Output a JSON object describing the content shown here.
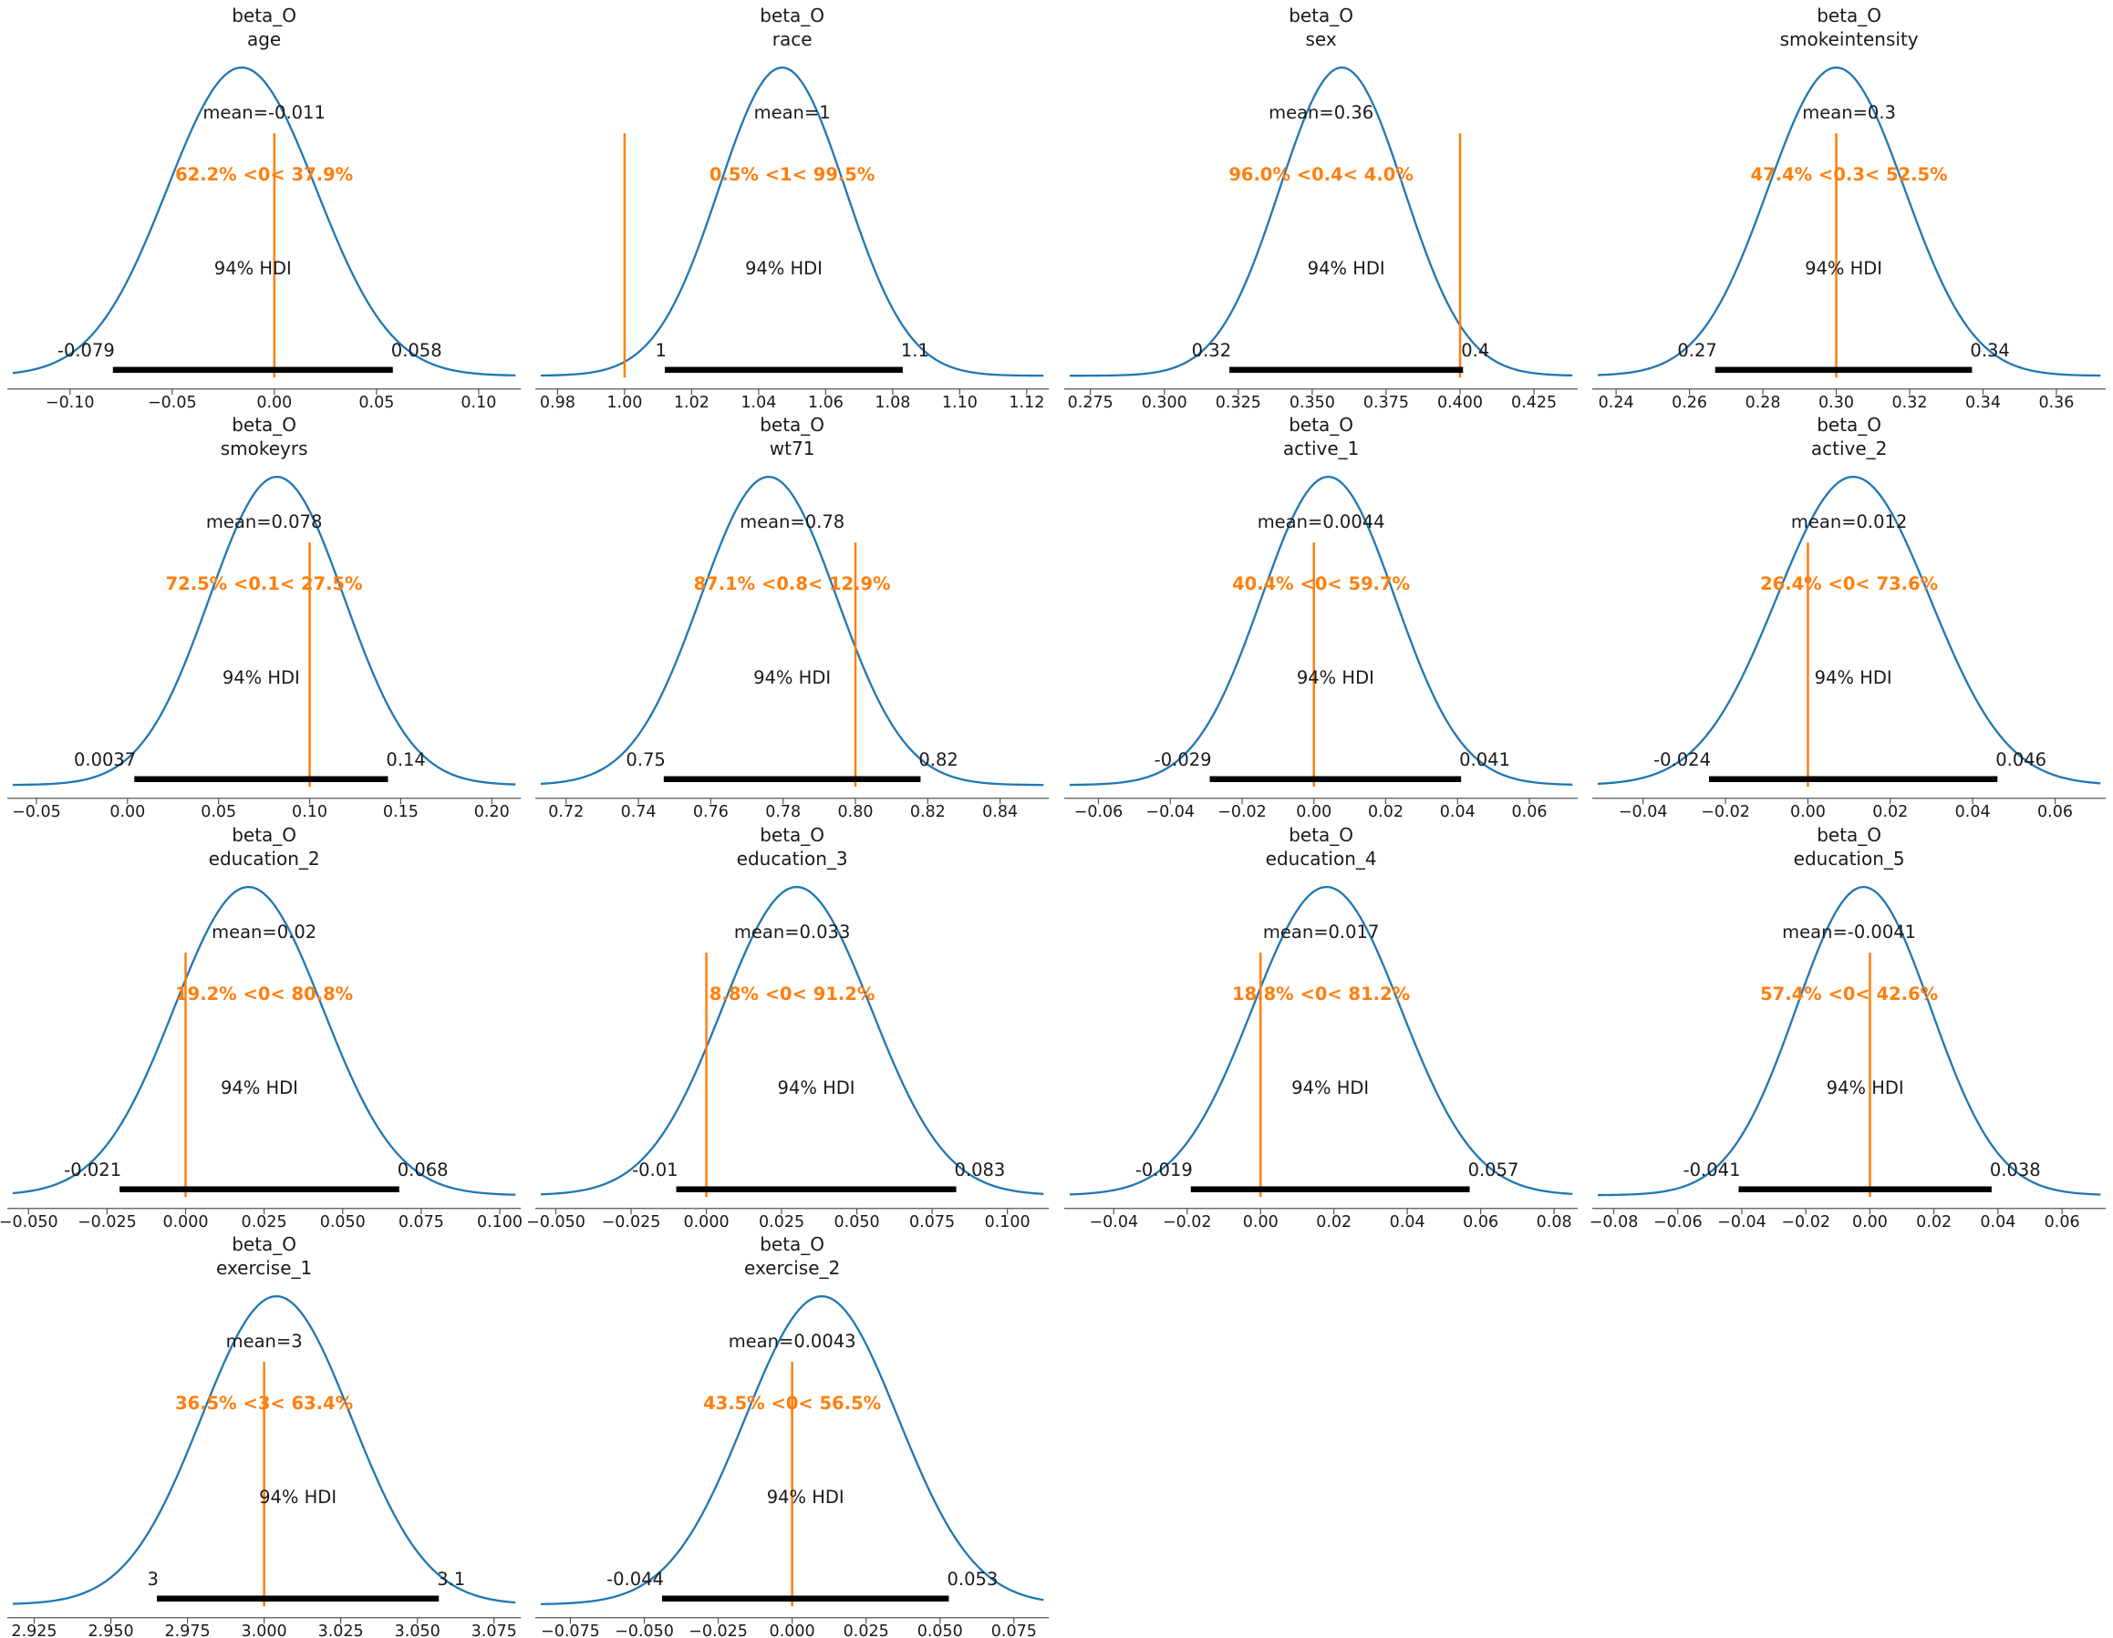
{
  "chart_data": {
    "type": "line",
    "description": "Grid of 14 posterior density (KDE) plots with 94% HDI intervals and reference values",
    "layout": {
      "columns": 4,
      "rows": 4,
      "legend": "none",
      "grid": "off"
    },
    "colors": {
      "kde_line": "#1f77b4",
      "ref_line": "#ff7f0e",
      "prob_text": "#ff7f0e",
      "hdi_bar": "#000000",
      "text": "#1a1a1a",
      "axis": "#555555",
      "background": "#ffffff"
    },
    "panels": [
      {
        "title_line1": "beta_O",
        "title_line2": "age",
        "mean_label": "mean=-0.011",
        "mean": -0.011,
        "mode": -0.016,
        "prob_label": "62.2% <0< 37.9%",
        "ref_val": 0,
        "hdi_label": "94% HDI",
        "hdi_low_label": "-0.079",
        "hdi_high_label": "0.058",
        "hdi_low": -0.079,
        "hdi_high": 0.058,
        "hdi_low_draw": -0.079,
        "hdi_high_draw": 0.058,
        "axis_min": -0.128,
        "axis_max": 0.118,
        "tick_values": [
          -0.1,
          -0.05,
          0.0,
          0.05,
          0.1
        ],
        "tick_labels": [
          "−0.10",
          "−0.05",
          "0.00",
          "0.05",
          "0.10"
        ]
      },
      {
        "title_line1": "beta_O",
        "title_line2": "race",
        "mean_label": "mean=1",
        "mean": 1,
        "mode": 1.047,
        "prob_label": "0.5% <1< 99.5%",
        "ref_val": 1,
        "hdi_label": "94% HDI",
        "hdi_low_label": "1",
        "hdi_high_label": "1.1",
        "hdi_low": 1,
        "hdi_high": 1.1,
        "hdi_low_draw": 1.012,
        "hdi_high_draw": 1.083,
        "axis_min": 0.975,
        "axis_max": 1.125,
        "tick_values": [
          0.98,
          1.0,
          1.02,
          1.04,
          1.06,
          1.08,
          1.1,
          1.12
        ],
        "tick_labels": [
          "0.98",
          "1.00",
          "1.02",
          "1.04",
          "1.06",
          "1.08",
          "1.10",
          "1.12"
        ]
      },
      {
        "title_line1": "beta_O",
        "title_line2": "sex",
        "mean_label": "mean=0.36",
        "mean": 0.36,
        "mode": 0.36,
        "prob_label": "96.0% <0.4< 4.0%",
        "ref_val": 0.4,
        "hdi_label": "94% HDI",
        "hdi_low_label": "0.32",
        "hdi_high_label": "0.4",
        "hdi_low": 0.32,
        "hdi_high": 0.4,
        "hdi_low_draw": 0.322,
        "hdi_high_draw": 0.401,
        "axis_min": 0.268,
        "axis_max": 0.438,
        "tick_values": [
          0.275,
          0.3,
          0.325,
          0.35,
          0.375,
          0.4,
          0.425
        ],
        "tick_labels": [
          "0.275",
          "0.300",
          "0.325",
          "0.350",
          "0.375",
          "0.400",
          "0.425"
        ]
      },
      {
        "title_line1": "beta_O",
        "title_line2": "smokeintensity",
        "mean_label": "mean=0.3",
        "mean": 0.3,
        "mode": 0.3,
        "prob_label": "47.4% <0.3< 52.5%",
        "ref_val": 0.3,
        "hdi_label": "94% HDI",
        "hdi_low_label": "0.27",
        "hdi_high_label": "0.34",
        "hdi_low": 0.27,
        "hdi_high": 0.34,
        "hdi_low_draw": 0.267,
        "hdi_high_draw": 0.337,
        "axis_min": 0.235,
        "axis_max": 0.372,
        "tick_values": [
          0.24,
          0.26,
          0.28,
          0.3,
          0.32,
          0.34,
          0.36
        ],
        "tick_labels": [
          "0.24",
          "0.26",
          "0.28",
          "0.30",
          "0.32",
          "0.34",
          "0.36"
        ]
      },
      {
        "title_line1": "beta_O",
        "title_line2": "smokeyrs",
        "mean_label": "mean=0.078",
        "mean": 0.078,
        "mode": 0.082,
        "prob_label": "72.5% <0.1< 27.5%",
        "ref_val": 0.1,
        "hdi_label": "94% HDI",
        "hdi_low_label": "0.0037",
        "hdi_high_label": "0.14",
        "hdi_low": 0.0037,
        "hdi_high": 0.14,
        "hdi_low_draw": 0.0037,
        "hdi_high_draw": 0.143,
        "axis_min": -0.063,
        "axis_max": 0.213,
        "tick_values": [
          -0.05,
          0.0,
          0.05,
          0.1,
          0.15,
          0.2
        ],
        "tick_labels": [
          "−0.05",
          "0.00",
          "0.05",
          "0.10",
          "0.15",
          "0.20"
        ]
      },
      {
        "title_line1": "beta_O",
        "title_line2": "wt71",
        "mean_label": "mean=0.78",
        "mean": 0.78,
        "mode": 0.776,
        "prob_label": "87.1% <0.8< 12.9%",
        "ref_val": 0.8,
        "hdi_label": "94% HDI",
        "hdi_low_label": "0.75",
        "hdi_high_label": "0.82",
        "hdi_low": 0.75,
        "hdi_high": 0.82,
        "hdi_low_draw": 0.747,
        "hdi_high_draw": 0.818,
        "axis_min": 0.713,
        "axis_max": 0.852,
        "tick_values": [
          0.72,
          0.74,
          0.76,
          0.78,
          0.8,
          0.82,
          0.84
        ],
        "tick_labels": [
          "0.72",
          "0.74",
          "0.76",
          "0.78",
          "0.80",
          "0.82",
          "0.84"
        ]
      },
      {
        "title_line1": "beta_O",
        "title_line2": "active_1",
        "mean_label": "mean=0.0044",
        "mean": 0.0044,
        "mode": 0.004,
        "prob_label": "40.4% <0< 59.7%",
        "ref_val": 0,
        "hdi_label": "94% HDI",
        "hdi_low_label": "-0.029",
        "hdi_high_label": "0.041",
        "hdi_low": -0.029,
        "hdi_high": 0.041,
        "hdi_low_draw": -0.029,
        "hdi_high_draw": 0.041,
        "axis_min": -0.068,
        "axis_max": 0.072,
        "tick_values": [
          -0.06,
          -0.04,
          -0.02,
          0.0,
          0.02,
          0.04,
          0.06
        ],
        "tick_labels": [
          "−0.06",
          "−0.04",
          "−0.02",
          "0.00",
          "0.02",
          "0.04",
          "0.06"
        ]
      },
      {
        "title_line1": "beta_O",
        "title_line2": "active_2",
        "mean_label": "mean=0.012",
        "mean": 0.012,
        "mode": 0.011,
        "prob_label": "26.4% <0< 73.6%",
        "ref_val": 0,
        "hdi_label": "94% HDI",
        "hdi_low_label": "-0.024",
        "hdi_high_label": "0.046",
        "hdi_low": -0.024,
        "hdi_high": 0.046,
        "hdi_low_draw": -0.024,
        "hdi_high_draw": 0.046,
        "axis_min": -0.051,
        "axis_max": 0.071,
        "tick_values": [
          -0.04,
          -0.02,
          0.0,
          0.02,
          0.04,
          0.06
        ],
        "tick_labels": [
          "−0.04",
          "−0.02",
          "0.00",
          "0.02",
          "0.04",
          "0.06"
        ]
      },
      {
        "title_line1": "beta_O",
        "title_line2": "education_2",
        "mean_label": "mean=0.02",
        "mean": 0.02,
        "mode": 0.02,
        "prob_label": "19.2% <0< 80.8%",
        "ref_val": 0,
        "hdi_label": "94% HDI",
        "hdi_low_label": "-0.021",
        "hdi_high_label": "0.068",
        "hdi_low": -0.021,
        "hdi_high": 0.068,
        "hdi_low_draw": -0.021,
        "hdi_high_draw": 0.068,
        "axis_min": -0.055,
        "axis_max": 0.105,
        "tick_values": [
          -0.05,
          -0.025,
          0.0,
          0.025,
          0.05,
          0.075,
          0.1
        ],
        "tick_labels": [
          "−0.050",
          "−0.025",
          "0.000",
          "0.025",
          "0.050",
          "0.075",
          "0.100"
        ]
      },
      {
        "title_line1": "beta_O",
        "title_line2": "education_3",
        "mean_label": "mean=0.033",
        "mean": 0.033,
        "mode": 0.03,
        "prob_label": "8.8% <0< 91.2%",
        "ref_val": 0,
        "hdi_label": "94% HDI",
        "hdi_low_label": "-0.01",
        "hdi_high_label": "0.083",
        "hdi_low": -0.01,
        "hdi_high": 0.083,
        "hdi_low_draw": -0.01,
        "hdi_high_draw": 0.083,
        "axis_min": -0.055,
        "axis_max": 0.112,
        "tick_values": [
          -0.05,
          -0.025,
          0.0,
          0.025,
          0.05,
          0.075,
          0.1
        ],
        "tick_labels": [
          "−0.050",
          "−0.025",
          "0.000",
          "0.025",
          "0.050",
          "0.075",
          "0.100"
        ]
      },
      {
        "title_line1": "beta_O",
        "title_line2": "education_4",
        "mean_label": "mean=0.017",
        "mean": 0.017,
        "mode": 0.018,
        "prob_label": "18.8% <0< 81.2%",
        "ref_val": 0,
        "hdi_label": "94% HDI",
        "hdi_low_label": "-0.019",
        "hdi_high_label": "0.057",
        "hdi_low": -0.019,
        "hdi_high": 0.057,
        "hdi_low_draw": -0.019,
        "hdi_high_draw": 0.057,
        "axis_min": -0.052,
        "axis_max": 0.085,
        "tick_values": [
          -0.04,
          -0.02,
          0.0,
          0.02,
          0.04,
          0.06,
          0.08
        ],
        "tick_labels": [
          "−0.04",
          "−0.02",
          "0.00",
          "0.02",
          "0.04",
          "0.06",
          "0.08"
        ]
      },
      {
        "title_line1": "beta_O",
        "title_line2": "education_5",
        "mean_label": "mean=-0.0041",
        "mean": -0.0041,
        "mode": -0.002,
        "prob_label": "57.4% <0< 42.6%",
        "ref_val": 0,
        "hdi_label": "94% HDI",
        "hdi_low_label": "-0.041",
        "hdi_high_label": "0.038",
        "hdi_low": -0.041,
        "hdi_high": 0.038,
        "hdi_low_draw": -0.041,
        "hdi_high_draw": 0.038,
        "axis_min": -0.085,
        "axis_max": 0.072,
        "tick_values": [
          -0.08,
          -0.06,
          -0.04,
          -0.02,
          0.0,
          0.02,
          0.04,
          0.06
        ],
        "tick_labels": [
          "−0.08",
          "−0.06",
          "−0.04",
          "−0.02",
          "0.00",
          "0.02",
          "0.04",
          "0.06"
        ]
      },
      {
        "title_line1": "beta_O",
        "title_line2": "exercise_1",
        "mean_label": "mean=3",
        "mean": 3,
        "mode": 3.004,
        "prob_label": "36.5% <3< 63.4%",
        "ref_val": 3,
        "hdi_label": "94% HDI",
        "hdi_low_label": "3",
        "hdi_high_label": "3.1",
        "hdi_low": 3,
        "hdi_high": 3.1,
        "hdi_low_draw": 2.965,
        "hdi_high_draw": 3.057,
        "axis_min": 2.918,
        "axis_max": 3.082,
        "tick_values": [
          2.925,
          2.95,
          2.975,
          3.0,
          3.025,
          3.05,
          3.075
        ],
        "tick_labels": [
          "2.925",
          "2.950",
          "2.975",
          "3.000",
          "3.025",
          "3.050",
          "3.075"
        ]
      },
      {
        "title_line1": "beta_O",
        "title_line2": "exercise_2",
        "mean_label": "mean=0.0043",
        "mean": 0.0043,
        "mode": 0.01,
        "prob_label": "43.5% <0< 56.5%",
        "ref_val": 0,
        "hdi_label": "94% HDI",
        "hdi_low_label": "-0.044",
        "hdi_high_label": "0.053",
        "hdi_low": -0.044,
        "hdi_high": 0.053,
        "hdi_low_draw": -0.044,
        "hdi_high_draw": 0.053,
        "axis_min": -0.085,
        "axis_max": 0.085,
        "tick_values": [
          -0.075,
          -0.05,
          -0.025,
          0.0,
          0.025,
          0.05,
          0.075
        ],
        "tick_labels": [
          "−0.075",
          "−0.050",
          "−0.025",
          "0.000",
          "0.025",
          "0.050",
          "0.075"
        ]
      }
    ]
  }
}
